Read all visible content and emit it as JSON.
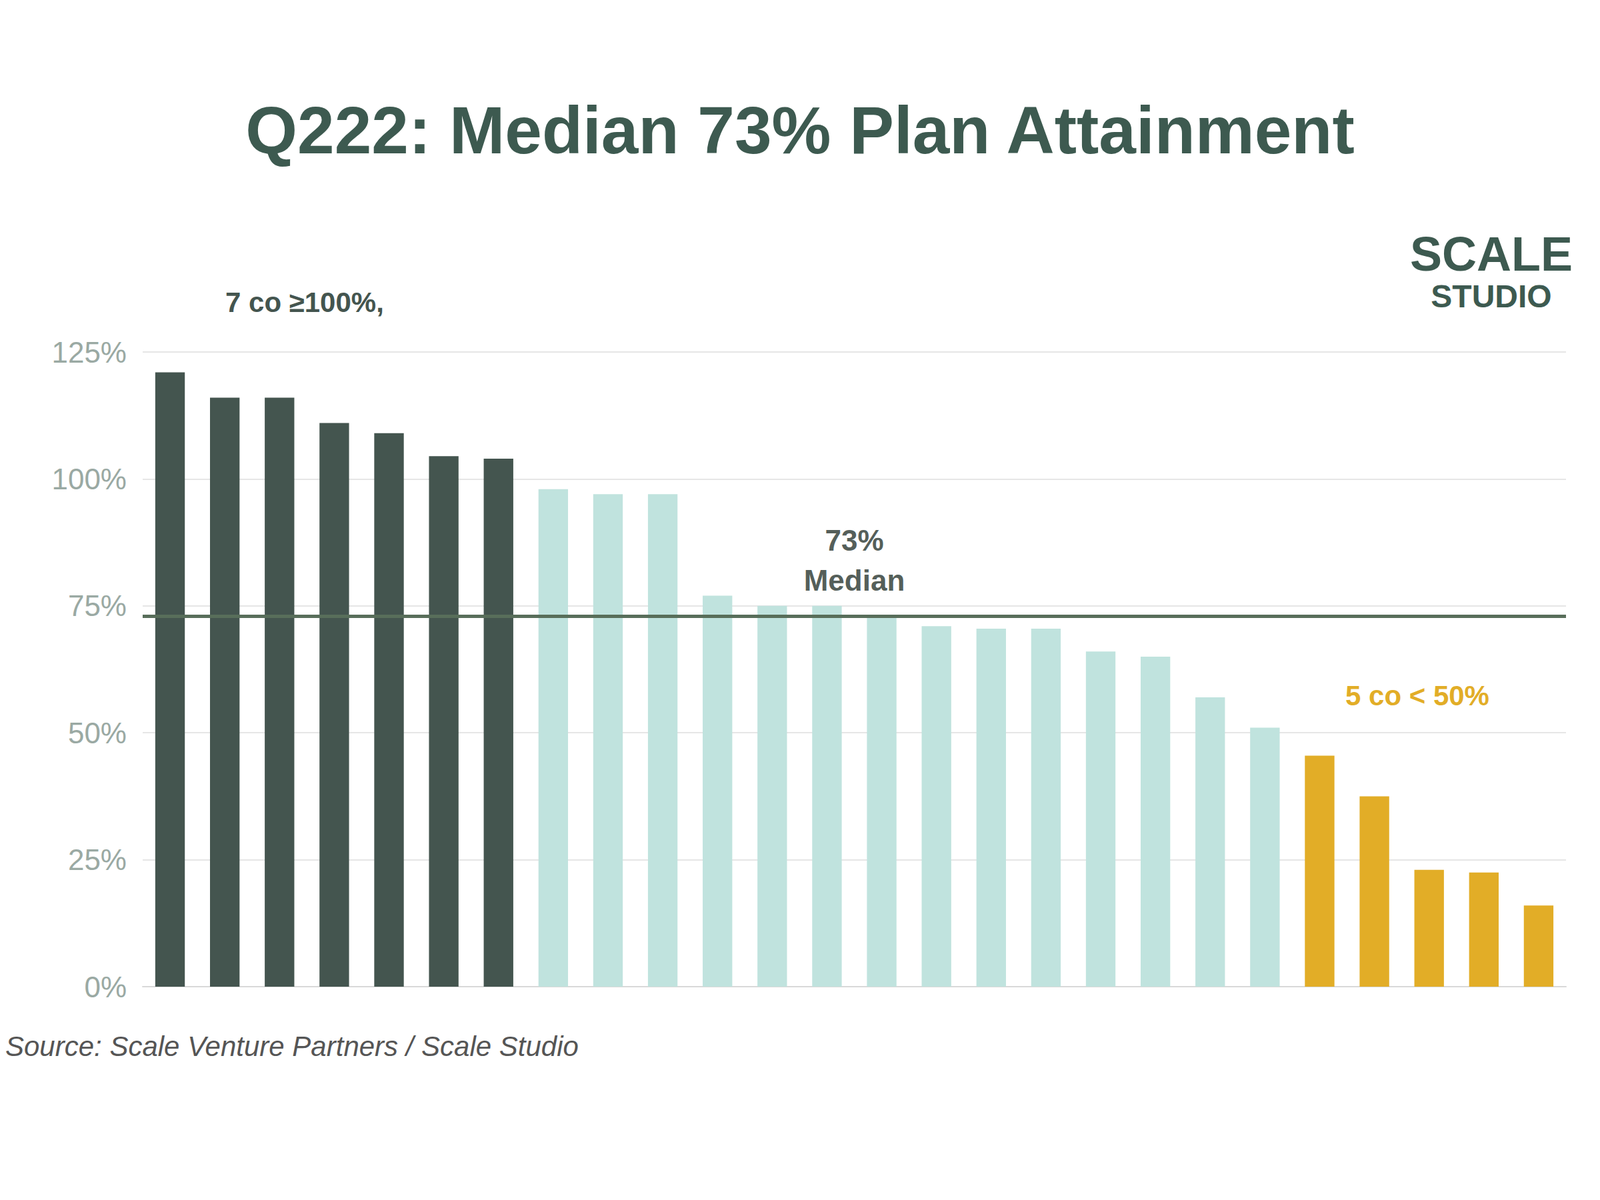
{
  "chart_data": {
    "type": "bar",
    "title": "Q222: Median 73% Plan Attainment",
    "categories": [
      null,
      null,
      null,
      null,
      null,
      null,
      null,
      null,
      null,
      null,
      null,
      null,
      null,
      null,
      null,
      null,
      null,
      null,
      null,
      null,
      null,
      null,
      null,
      null,
      null,
      null
    ],
    "values": [
      121,
      116,
      116,
      111,
      109,
      104.5,
      104,
      98,
      97,
      97,
      77,
      75,
      75,
      73,
      71,
      70.5,
      70.5,
      66,
      65,
      57,
      51,
      45.5,
      37.5,
      23,
      22.5,
      16
    ],
    "colors": [
      "#44554f",
      "#44554f",
      "#44554f",
      "#44554f",
      "#44554f",
      "#44554f",
      "#44554f",
      "#c0e3de",
      "#c0e3de",
      "#c0e3de",
      "#c0e3de",
      "#c0e3de",
      "#c0e3de",
      "#c0e3de",
      "#c0e3de",
      "#c0e3de",
      "#c0e3de",
      "#c0e3de",
      "#c0e3de",
      "#c0e3de",
      "#c0e3de",
      "#e2ad27",
      "#e2ad27",
      "#e2ad27",
      "#e2ad27",
      "#e2ad27"
    ],
    "ylim": [
      0,
      125
    ],
    "yticks": [
      {
        "value": 0,
        "label": "0%"
      },
      {
        "value": 25,
        "label": "25%"
      },
      {
        "value": 50,
        "label": "50%"
      },
      {
        "value": 75,
        "label": "75%"
      },
      {
        "value": 100,
        "label": "100%"
      },
      {
        "value": 125,
        "label": "125%"
      }
    ],
    "grid": true,
    "tick_labels": "y",
    "median": {
      "value": 73,
      "label": "73%\nMedian"
    },
    "annotations": [
      "7 co ≥100%,",
      "5 co < 50%"
    ],
    "logo": [
      "SCALE",
      "STUDIO"
    ],
    "source": "Source: Scale Venture Partners / Scale Studio"
  }
}
